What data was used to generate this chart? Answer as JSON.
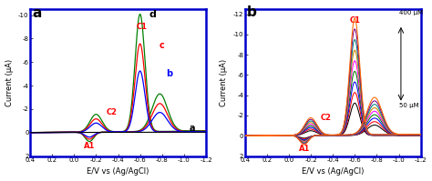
{
  "panel_a": {
    "label": "a",
    "xlim": [
      0.4,
      -1.2
    ],
    "ylim": [
      2,
      -10.5
    ],
    "yticks": [
      2,
      0,
      -2,
      -4,
      -6,
      -8,
      -10
    ],
    "xticks": [
      0.4,
      0.2,
      0.0,
      -0.2,
      -0.4,
      -0.6,
      -0.8,
      -1.0,
      -1.2
    ],
    "xlabel": "E/V vs (Ag/AgCl)",
    "ylabel": "Current (μA)"
  },
  "panel_b": {
    "label": "b",
    "xlim": [
      0.4,
      -1.2
    ],
    "ylim": [
      2,
      -12.5
    ],
    "yticks": [
      2,
      0,
      -2,
      -4,
      -6,
      -8,
      -10,
      -12
    ],
    "xticks": [
      0.4,
      0.2,
      0.0,
      -0.2,
      -0.4,
      -0.6,
      -0.8,
      -1.0,
      -1.2
    ],
    "xlabel": "E/V vs (Ag/AgCl)",
    "ylabel": "Current (μA)",
    "curve_colors": [
      "#000000",
      "#FF0000",
      "#0000FF",
      "#008000",
      "#FF00FF",
      "#CC8800",
      "#008080",
      "#800080",
      "#FF6600"
    ]
  },
  "bg_color": "#FFFFFF",
  "border_color": "#0000CC"
}
